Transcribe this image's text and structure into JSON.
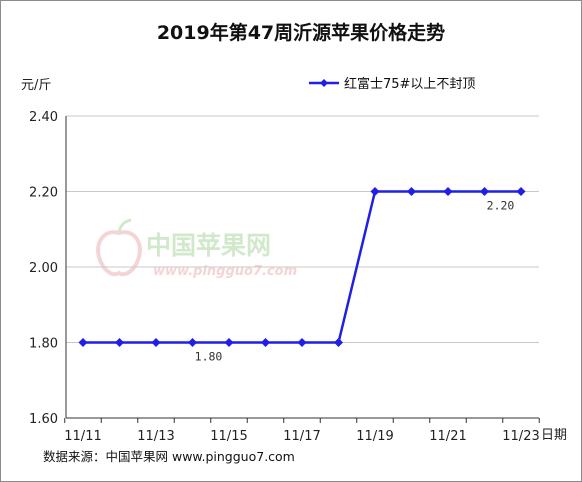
{
  "chart_data": {
    "type": "line",
    "title": "2019年第47周沂源苹果价格走势",
    "ylabel": "元/斤",
    "xlabel": "日期",
    "ylim": [
      1.6,
      2.4
    ],
    "yticks": [
      "1.60",
      "1.80",
      "2.00",
      "2.20",
      "2.40"
    ],
    "xtick_labels": [
      "11/11",
      "11/13",
      "11/15",
      "11/17",
      "11/19",
      "11/21",
      "11/23"
    ],
    "grid": true,
    "legend_position": "top-right",
    "categories": [
      "11/11",
      "11/12",
      "11/13",
      "11/14",
      "11/15",
      "11/16",
      "11/17",
      "11/18",
      "11/19",
      "11/20",
      "11/21",
      "11/22",
      "11/23"
    ],
    "series": [
      {
        "name": "红富士75#以上不封顶",
        "color": "#1f1fe6",
        "values": [
          1.8,
          1.8,
          1.8,
          1.8,
          1.8,
          1.8,
          1.8,
          1.8,
          2.2,
          2.2,
          2.2,
          2.2,
          2.2
        ]
      }
    ],
    "annotations": [
      {
        "text": "1.80",
        "category": "11/14",
        "value": 1.8
      },
      {
        "text": "2.20",
        "category": "11/22",
        "value": 2.2
      }
    ]
  },
  "watermark": {
    "text_cn": "中国苹果网",
    "text_en": "www.pingguo7.com"
  },
  "footer": {
    "source_text": "数据来源：中国苹果网 www.pingguo7.com"
  }
}
